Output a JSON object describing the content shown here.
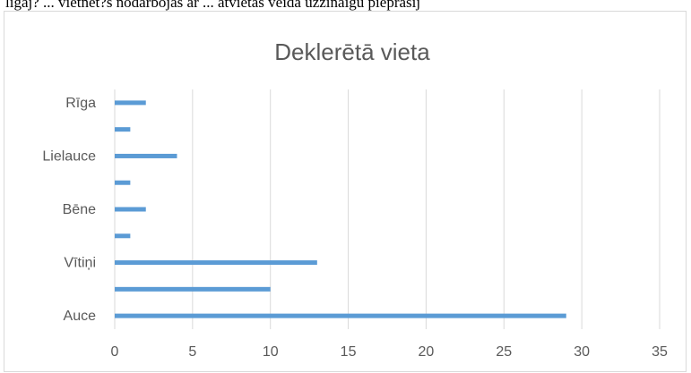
{
  "header_text": "ligaj? ... vietnet?s nodarbojas ar ... atvietas veida uzzinaigu pieprasij",
  "chart_data": {
    "type": "bar",
    "orientation": "horizontal",
    "title": "Deklerētā vieta",
    "xlabel": "",
    "ylabel": "",
    "xlim": [
      0,
      35
    ],
    "xticks": [
      0,
      5,
      10,
      15,
      20,
      25,
      30,
      35
    ],
    "grid": "vertical",
    "legend": "none",
    "bar_color": "#5b9bd5",
    "categories": [
      "Auce",
      "",
      "Vītiņi",
      "",
      "Bēne",
      "",
      "Lielauce",
      "",
      "Rīga"
    ],
    "values": [
      29,
      10,
      13,
      1,
      2,
      1,
      4,
      1,
      2
    ]
  }
}
